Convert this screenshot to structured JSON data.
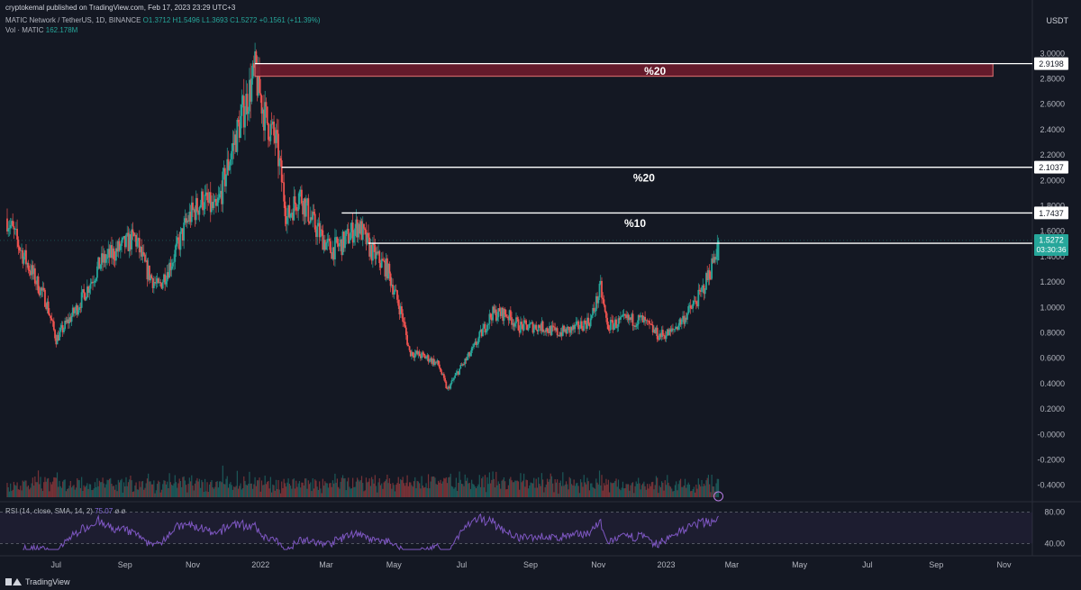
{
  "header": {
    "published": "cryptokemal published on TradingView.com, Feb 17, 2023 23:29 UTC+3",
    "symbol": "MATIC Network / TetherUS, 1D, BINANCE",
    "ohlc": "O1.3712 H1.5496 L1.3693 C1.5272 +0.1561 (+11.39%)",
    "volume_label": "Vol · MATIC",
    "volume_value": "162.178M"
  },
  "currency": "USDT",
  "footer": {
    "brand": "TradingView"
  },
  "rsi": {
    "label": "RSI (14, close, SMA, 14, 2)",
    "value": "75.07",
    "extra": "ø ø"
  },
  "colors": {
    "background": "#141823",
    "up": "#26a69a",
    "down": "#ef5350",
    "rsi": "#7e57c2",
    "zone": "#6d1b2c"
  },
  "chart_data": {
    "type": "candlestick",
    "title": "MATIC Network / TetherUS, 1D, BINANCE",
    "currency": "USDT",
    "x_labels": [
      "Jul",
      "Sep",
      "Nov",
      "2022",
      "Mar",
      "May",
      "Jul",
      "Sep",
      "Nov",
      "2023",
      "Mar",
      "May",
      "Jul",
      "Sep",
      "Nov"
    ],
    "y_ticks": [
      "3.0000",
      "2.8000",
      "2.6000",
      "2.4000",
      "2.2000",
      "2.0000",
      "1.8000",
      "1.6000",
      "1.4000",
      "1.2000",
      "1.0000",
      "0.8000",
      "0.6000",
      "0.4000",
      "0.2000",
      "-0.0000",
      "-0.2000",
      "-0.4000"
    ],
    "ylim": [
      -0.48,
      3.08
    ],
    "price_path": [
      [
        "2021-05-18",
        1.7
      ],
      [
        "2021-06-02",
        1.4
      ],
      [
        "2021-06-22",
        1.05
      ],
      [
        "2021-07-01",
        0.75
      ],
      [
        "2021-07-20",
        1.0
      ],
      [
        "2021-08-10",
        1.35
      ],
      [
        "2021-08-25",
        1.45
      ],
      [
        "2021-09-10",
        1.55
      ],
      [
        "2021-09-20",
        1.3
      ],
      [
        "2021-10-01",
        1.15
      ],
      [
        "2021-10-15",
        1.4
      ],
      [
        "2021-10-28",
        1.7
      ],
      [
        "2021-11-10",
        1.85
      ],
      [
        "2021-11-22",
        1.75
      ],
      [
        "2021-12-05",
        2.2
      ],
      [
        "2021-12-15",
        2.5
      ],
      [
        "2021-12-27",
        2.85
      ],
      [
        "2022-01-05",
        2.5
      ],
      [
        "2022-01-15",
        2.3
      ],
      [
        "2022-01-25",
        1.7
      ],
      [
        "2022-02-05",
        1.9
      ],
      [
        "2022-02-18",
        1.65
      ],
      [
        "2022-03-05",
        1.45
      ],
      [
        "2022-03-15",
        1.5
      ],
      [
        "2022-03-30",
        1.65
      ],
      [
        "2022-04-10",
        1.45
      ],
      [
        "2022-04-25",
        1.3
      ],
      [
        "2022-05-08",
        0.95
      ],
      [
        "2022-05-15",
        0.65
      ],
      [
        "2022-06-01",
        0.6
      ],
      [
        "2022-06-10",
        0.55
      ],
      [
        "2022-06-18",
        0.35
      ],
      [
        "2022-06-28",
        0.5
      ],
      [
        "2022-07-10",
        0.65
      ],
      [
        "2022-07-28",
        0.95
      ],
      [
        "2022-08-10",
        0.95
      ],
      [
        "2022-08-22",
        0.85
      ],
      [
        "2022-09-10",
        0.85
      ],
      [
        "2022-09-25",
        0.8
      ],
      [
        "2022-10-10",
        0.83
      ],
      [
        "2022-10-25",
        0.9
      ],
      [
        "2022-11-03",
        1.15
      ],
      [
        "2022-11-09",
        0.85
      ],
      [
        "2022-11-25",
        0.9
      ],
      [
        "2022-12-10",
        0.9
      ],
      [
        "2022-12-25",
        0.78
      ],
      [
        "2023-01-05",
        0.8
      ],
      [
        "2023-01-20",
        0.95
      ],
      [
        "2023-02-01",
        1.1
      ],
      [
        "2023-02-10",
        1.3
      ],
      [
        "2023-02-17",
        1.5272
      ]
    ],
    "last_candle": {
      "date": "2023-02-17",
      "open": 1.3712,
      "high": 1.5496,
      "low": 1.3693,
      "close": 1.5272
    },
    "levels": [
      {
        "price": 2.9198,
        "label": "2.9198",
        "start": "2021-12-27"
      },
      {
        "price": 2.1037,
        "label": "2.1037",
        "start": "2022-01-20"
      },
      {
        "price": 1.7437,
        "label": "1.7437",
        "start": "2022-03-15"
      },
      {
        "price": 1.5052,
        "label": "1.5052",
        "start": "2022-04-08"
      }
    ],
    "zone": {
      "top": 2.9198,
      "bottom": 2.82,
      "start": "2021-12-27",
      "end": "2023-10-22"
    },
    "annotations": [
      {
        "text": "%20",
        "price": 2.86,
        "date": "2022-12-22"
      },
      {
        "text": "%20",
        "price": 2.02,
        "date": "2022-12-12"
      },
      {
        "text": "%10",
        "price": 1.66,
        "date": "2022-12-04"
      }
    ],
    "current_price": {
      "label": "1.5272",
      "countdown": "03:30:36"
    },
    "rsi": {
      "levels": [
        80,
        40
      ],
      "last": 75.07
    }
  }
}
